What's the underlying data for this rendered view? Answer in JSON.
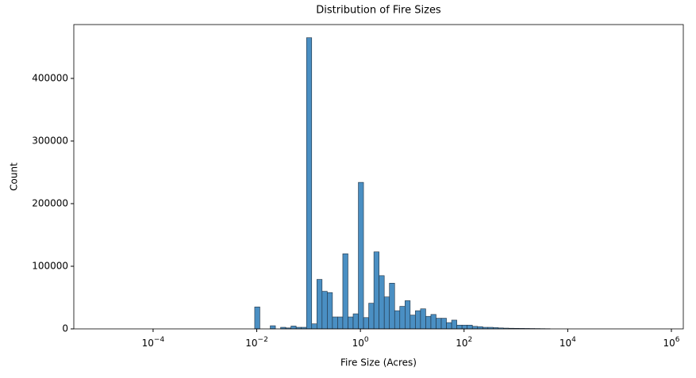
{
  "chart_data": {
    "type": "histogram",
    "title": "Distribution of Fire Sizes",
    "x_label": "Fire Size (Acres)",
    "y_label": "Count",
    "xscale": "log",
    "color": "#4a8fc3",
    "edgecolor": "#1f2f3f",
    "bins": [
      0.00912,
      0.01148,
      0.01445,
      0.0182,
      0.02291,
      0.02884,
      0.03631,
      0.04571,
      0.05754,
      0.07244,
      0.0912,
      0.1148,
      0.1445,
      0.182,
      0.2291,
      0.2884,
      0.3631,
      0.4571,
      0.5754,
      0.7244,
      0.912,
      1.148,
      1.445,
      1.82,
      2.291,
      2.884,
      3.631,
      4.571,
      5.754,
      7.244,
      9.12,
      11.48,
      14.45,
      18.2,
      22.91,
      28.84,
      36.31,
      45.71,
      57.54,
      72.44,
      91.2,
      114.8,
      144.5,
      182,
      229.1,
      288.4,
      363.1,
      457.1,
      575.4,
      724.4,
      912,
      1148,
      1445,
      1820,
      2291,
      2884,
      3631,
      4571
    ],
    "counts": [
      35000,
      0,
      0,
      5000,
      0,
      2500,
      1500,
      4500,
      2500,
      2500,
      465000,
      8000,
      79000,
      60000,
      58000,
      19000,
      19000,
      120000,
      19000,
      24000,
      234000,
      18000,
      41000,
      123000,
      85000,
      51000,
      73000,
      29000,
      36000,
      45000,
      22000,
      29000,
      32000,
      20000,
      23000,
      17000,
      17000,
      10000,
      14000,
      6000,
      6000,
      6000,
      4000,
      3500,
      2500,
      2500,
      2000,
      1500,
      1200,
      1000,
      900,
      800,
      700,
      600,
      500,
      400,
      300
    ],
    "xlim": [
      2.951e-06,
      1698000
    ],
    "xticks": [
      {
        "value": 0.0001,
        "label": "10−4"
      },
      {
        "value": 0.01,
        "label": "10−2"
      },
      {
        "value": 1,
        "label": "100"
      },
      {
        "value": 100,
        "label": "102"
      },
      {
        "value": 10000,
        "label": "104"
      },
      {
        "value": 1000000,
        "label": "106"
      }
    ],
    "ylim": [
      0,
      486000
    ],
    "yticks": [
      0,
      100000,
      200000,
      300000,
      400000
    ]
  }
}
